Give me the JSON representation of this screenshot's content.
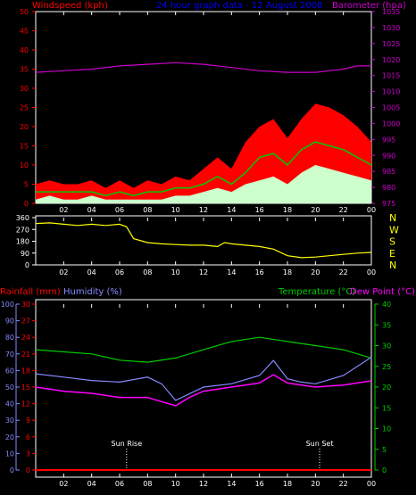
{
  "header": {
    "left_label": "Windspeed (kph)",
    "center_label": "24 hour graph data - 12 August 2008",
    "right_label": "Barometer (hpa)"
  },
  "colors": {
    "wind_gust": "#ff0000",
    "wind_avg": "#00cc00",
    "wind_low": "#ccffcc",
    "barometer": "#cc00cc",
    "wind_dir": "#ffff00",
    "rain": "#ff0000",
    "humidity": "#8888ff",
    "temperature": "#00cc00",
    "dewpoint": "#ff00ff",
    "title": "#0000ff",
    "axis_green": "#00cc00",
    "axis_blue": "#8888ff"
  },
  "lower_header": {
    "rain_label": "Rainfall (mm)",
    "humidity_label": "Humidity (%)",
    "temp_label": "Temperature (°C)",
    "dew_label": "Dew Point (°C)"
  },
  "annotations": {
    "sunrise": "Sun Rise",
    "sunset": "Sun Set"
  },
  "chart_data": [
    {
      "type": "line",
      "panel": "wind_barometer",
      "x_ticks": [
        "02",
        "04",
        "06",
        "08",
        "10",
        "12",
        "14",
        "16",
        "18",
        "20",
        "22",
        "00"
      ],
      "left_axis": {
        "label": "Windspeed (kph)",
        "ticks": [
          0,
          5,
          10,
          15,
          20,
          25,
          30,
          35,
          40,
          45,
          50
        ],
        "range": [
          0,
          50
        ]
      },
      "right_axis": {
        "label": "Barometer (hpa)",
        "ticks": [
          975,
          980,
          985,
          990,
          995,
          1000,
          1005,
          1010,
          1015,
          1020,
          1025,
          1030,
          1035
        ],
        "range": [
          975,
          1035
        ]
      },
      "x_range_hours": [
        0,
        24
      ],
      "series": [
        {
          "name": "Barometer (hpa)",
          "axis": "right",
          "x": [
            0,
            2,
            4,
            6,
            8,
            10,
            12,
            14,
            16,
            18,
            20,
            22,
            23,
            24
          ],
          "y": [
            1016,
            1016.5,
            1017,
            1018,
            1018.5,
            1019,
            1018.5,
            1017.5,
            1016.5,
            1016,
            1016,
            1017,
            1018,
            1018
          ]
        },
        {
          "name": "gust",
          "axis": "left",
          "x": [
            0,
            1,
            2,
            3,
            4,
            5,
            6,
            7,
            8,
            9,
            10,
            11,
            12,
            13,
            14,
            15,
            16,
            17,
            18,
            19,
            20,
            21,
            22,
            23,
            24
          ],
          "y": [
            5,
            6,
            5,
            5,
            6,
            4,
            6,
            4,
            6,
            5,
            7,
            6,
            9,
            12,
            9,
            16,
            20,
            22,
            17,
            22,
            26,
            25,
            23,
            20,
            16
          ]
        },
        {
          "name": "average",
          "axis": "left",
          "x": [
            0,
            1,
            2,
            3,
            4,
            5,
            6,
            7,
            8,
            9,
            10,
            11,
            12,
            13,
            14,
            15,
            16,
            17,
            18,
            19,
            20,
            21,
            22,
            23,
            24
          ],
          "y": [
            3,
            3,
            3,
            3,
            3,
            2,
            3,
            2,
            3,
            3,
            4,
            4,
            5,
            7,
            5,
            8,
            12,
            13,
            10,
            14,
            16,
            15,
            14,
            12,
            10
          ]
        },
        {
          "name": "low",
          "axis": "left",
          "x": [
            0,
            1,
            2,
            3,
            4,
            5,
            6,
            7,
            8,
            9,
            10,
            11,
            12,
            13,
            14,
            15,
            16,
            17,
            18,
            19,
            20,
            21,
            22,
            23,
            24
          ],
          "y": [
            1,
            2,
            1,
            1,
            2,
            1,
            1,
            1,
            1,
            1,
            2,
            2,
            3,
            4,
            3,
            5,
            6,
            7,
            5,
            8,
            10,
            9,
            8,
            7,
            6
          ]
        }
      ]
    },
    {
      "type": "line",
      "panel": "wind_direction",
      "x_ticks": [
        "02",
        "04",
        "06",
        "08",
        "10",
        "12",
        "14",
        "16",
        "18",
        "20",
        "22",
        "00"
      ],
      "left_axis": {
        "ticks": [
          0,
          90,
          180,
          270,
          360
        ],
        "range": [
          0,
          360
        ]
      },
      "right_axis": {
        "ticks": [
          "N",
          "W",
          "S",
          "E",
          "N"
        ]
      },
      "series": [
        {
          "name": "direction",
          "x": [
            0,
            1,
            2,
            3,
            4,
            5,
            6,
            6.5,
            7,
            8,
            9,
            10,
            11,
            12,
            13,
            13.5,
            14,
            15,
            16,
            17,
            18,
            19,
            20,
            21,
            22,
            23,
            24
          ],
          "y": [
            315,
            320,
            310,
            300,
            310,
            300,
            310,
            290,
            200,
            170,
            160,
            155,
            150,
            150,
            140,
            170,
            160,
            150,
            140,
            120,
            70,
            55,
            60,
            70,
            80,
            90,
            95
          ]
        }
      ]
    },
    {
      "type": "line",
      "panel": "temp_humidity_rain",
      "x_ticks": [
        "02",
        "04",
        "06",
        "08",
        "10",
        "12",
        "14",
        "16",
        "18",
        "20",
        "22",
        "00"
      ],
      "rain_axis": {
        "label": "Rainfall (mm)",
        "ticks": [
          0,
          3,
          6,
          9,
          12,
          15,
          18,
          21,
          24,
          27,
          30
        ],
        "range": [
          0,
          30
        ]
      },
      "humidity_axis": {
        "label": "Humidity (%)",
        "ticks": [
          0,
          10,
          20,
          30,
          40,
          50,
          60,
          70,
          80,
          90,
          100
        ],
        "range": [
          0,
          100
        ]
      },
      "temp_axis": {
        "label": "Temperature (°C)",
        "ticks": [
          0,
          5,
          10,
          15,
          20,
          25,
          30,
          35,
          40
        ],
        "range": [
          0,
          40
        ]
      },
      "series": [
        {
          "name": "Temperature (°C)",
          "axis": "temp",
          "x": [
            0,
            2,
            4,
            6,
            8,
            10,
            12,
            14,
            16,
            18,
            20,
            22,
            24
          ],
          "y": [
            29,
            28.5,
            28,
            26.5,
            26,
            27,
            29,
            31,
            32,
            31,
            30,
            29,
            27
          ]
        },
        {
          "name": "Humidity (%)",
          "axis": "humidity",
          "x": [
            0,
            2,
            4,
            6,
            8,
            9,
            10,
            11,
            12,
            14,
            16,
            17,
            18,
            19,
            20,
            22,
            24
          ],
          "y": [
            58,
            56,
            54,
            53,
            56,
            52,
            42,
            46,
            50,
            52,
            57,
            66,
            55,
            53,
            52,
            57,
            68
          ]
        },
        {
          "name": "Dew Point (°C)",
          "axis": "temp",
          "x": [
            0,
            2,
            4,
            6,
            8,
            9,
            10,
            11,
            12,
            14,
            16,
            17,
            18,
            19,
            20,
            22,
            24
          ],
          "y": [
            20,
            19,
            18.5,
            17.5,
            17.5,
            16.5,
            15.5,
            17.5,
            19,
            20,
            21,
            23,
            21,
            20.5,
            20,
            20.5,
            21.5
          ]
        },
        {
          "name": "Rainfall (mm)",
          "axis": "rain",
          "x": [
            0,
            24
          ],
          "y": [
            0,
            0
          ]
        }
      ],
      "markers": [
        {
          "label": "Sun Rise",
          "x": 6.5
        },
        {
          "label": "Sun Set",
          "x": 20.3
        }
      ]
    }
  ]
}
